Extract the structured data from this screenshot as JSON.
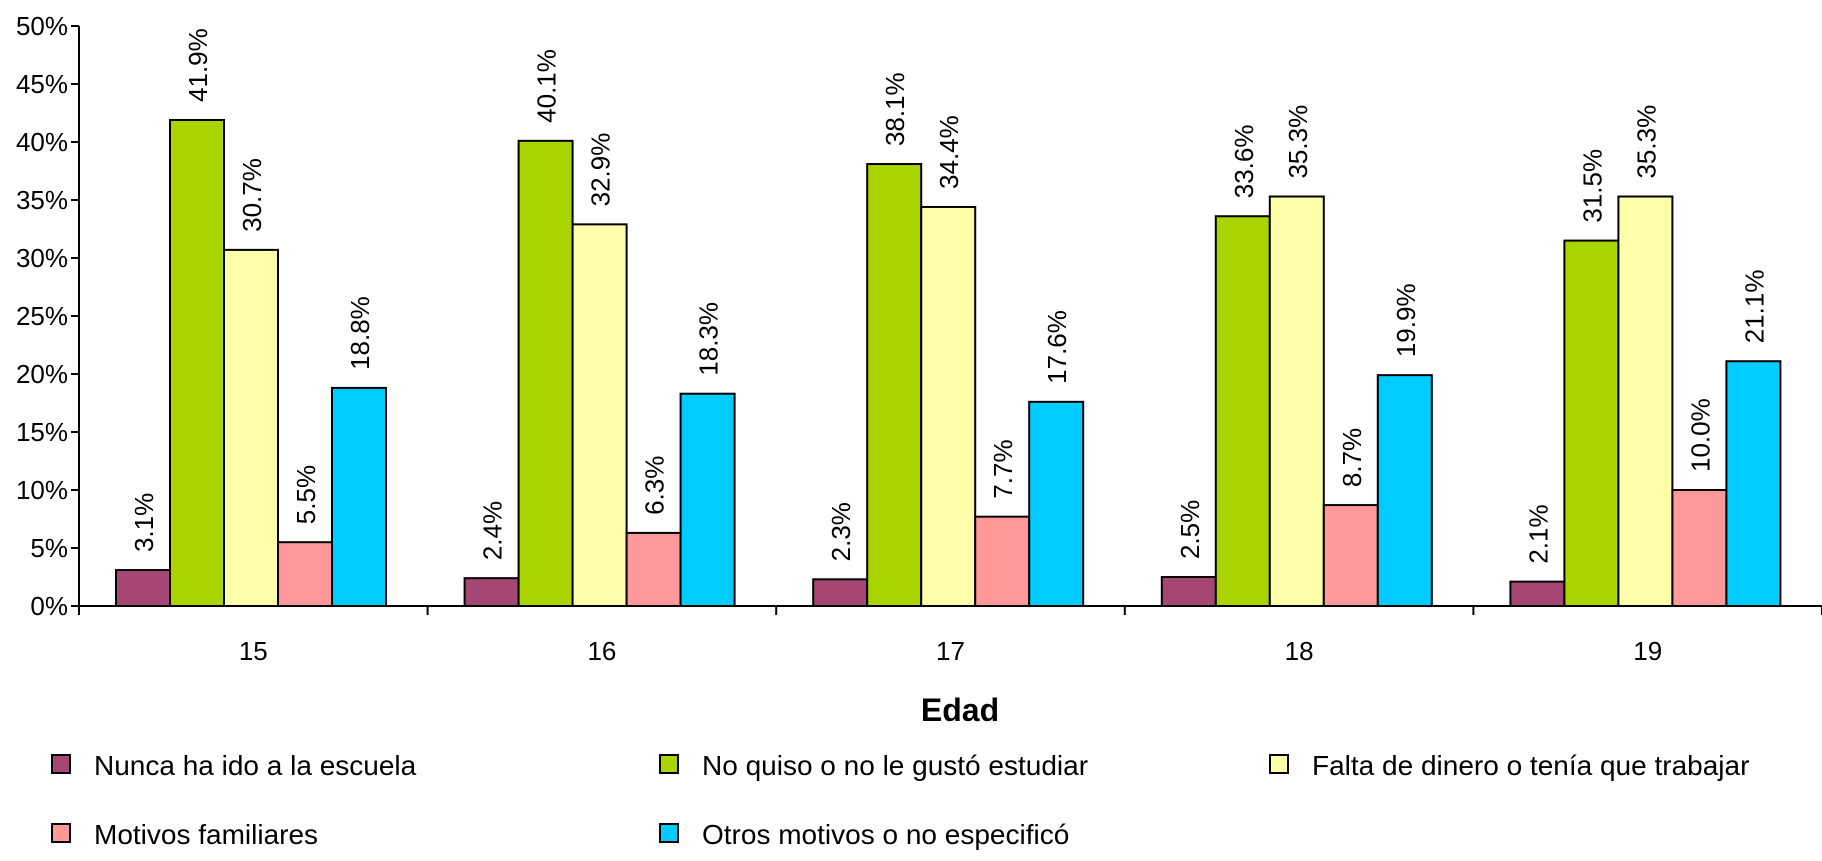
{
  "chart_data": {
    "type": "bar",
    "xlabel": "Edad",
    "ylabel": "",
    "ylim": [
      0,
      50
    ],
    "y_ticks": [
      0,
      5,
      10,
      15,
      20,
      25,
      30,
      35,
      40,
      45,
      50
    ],
    "y_tick_labels": [
      "0%",
      "5%",
      "10%",
      "15%",
      "20%",
      "25%",
      "30%",
      "35%",
      "40%",
      "45%",
      "50%"
    ],
    "grid": false,
    "legend": "bottom",
    "categories": [
      "15",
      "16",
      "17",
      "18",
      "19"
    ],
    "series": [
      {
        "name": "Nunca ha ido a la escuela",
        "color": "#a64675",
        "values": [
          3.1,
          2.4,
          2.3,
          2.5,
          2.1
        ],
        "labels": [
          "3.1%",
          "2.4%",
          "2.3%",
          "2.5%",
          "2.1%"
        ]
      },
      {
        "name": "No quiso o no le gustó estudiar",
        "color": "#aad400",
        "values": [
          41.9,
          40.1,
          38.1,
          33.6,
          31.5
        ],
        "labels": [
          "41.9%",
          "40.1%",
          "38.1%",
          "33.6%",
          "31.5%"
        ]
      },
      {
        "name": "Falta de dinero o tenía que trabajar",
        "color": "#ffffaa",
        "values": [
          30.7,
          32.9,
          34.4,
          35.3,
          35.3
        ],
        "labels": [
          "30.7%",
          "32.9%",
          "34.4%",
          "35.3%",
          "35.3%"
        ]
      },
      {
        "name": "Motivos familiares",
        "color": "#ff9999",
        "values": [
          5.5,
          6.3,
          7.7,
          8.7,
          10.0
        ],
        "labels": [
          "5.5%",
          "6.3%",
          "7.7%",
          "8.7%",
          "10.0%"
        ]
      },
      {
        "name": "Otros motivos o no especificó",
        "color": "#00ccff",
        "values": [
          18.8,
          18.3,
          17.6,
          19.9,
          21.1
        ],
        "labels": [
          "18.8%",
          "18.3%",
          "17.6%",
          "19.9%",
          "21.1%"
        ]
      }
    ]
  }
}
